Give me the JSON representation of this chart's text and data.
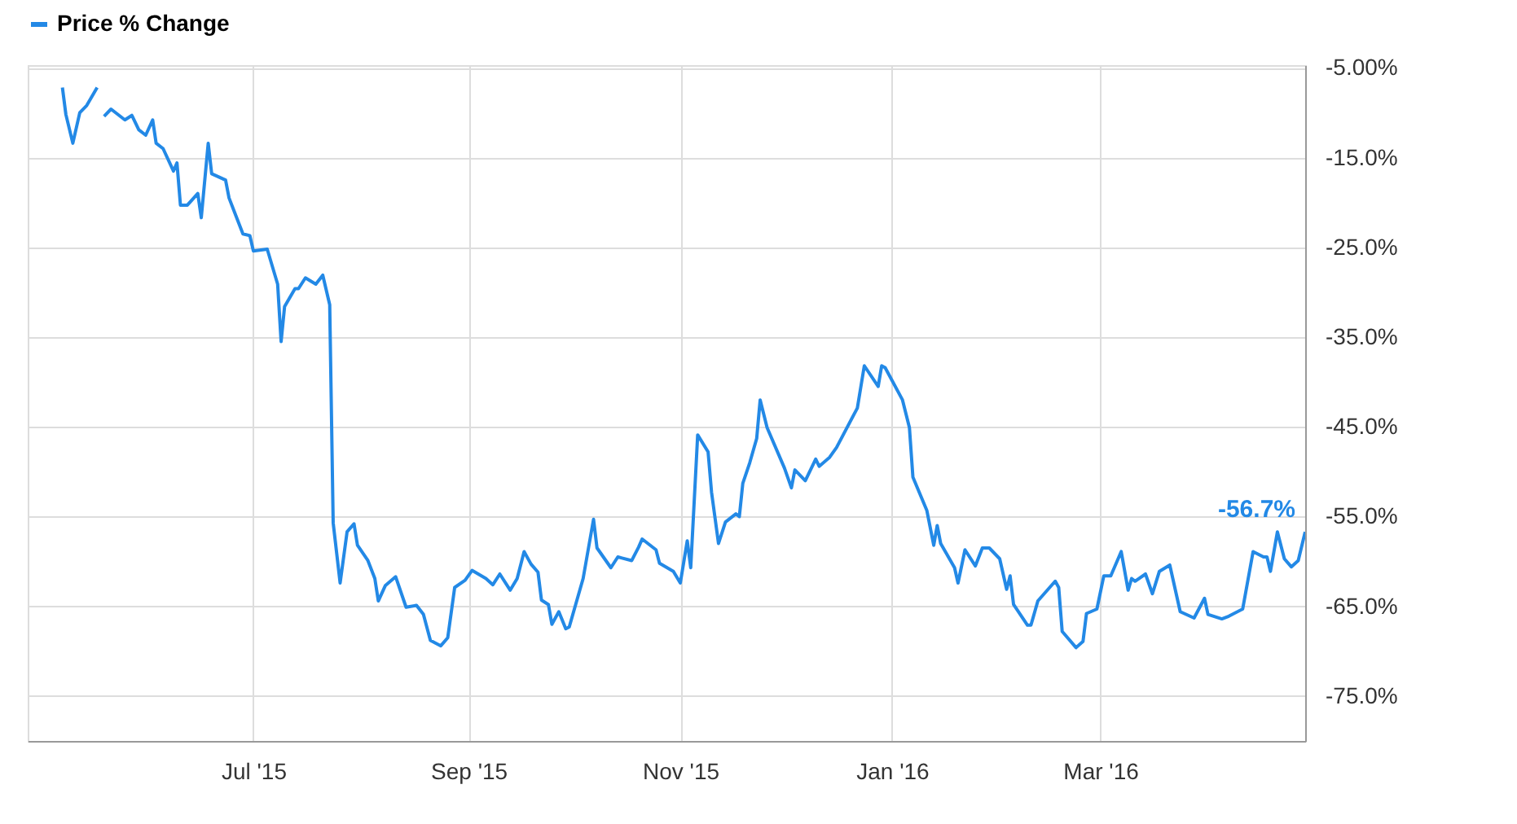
{
  "chart_data": {
    "type": "line",
    "x": [
      "2015-05-07",
      "2015-05-08",
      "2015-05-10",
      "2015-05-12",
      "2015-05-14",
      "2015-05-17",
      "2015-05-18",
      "2015-05-19",
      "2015-05-21",
      "2015-05-25",
      "2015-05-27",
      "2015-05-29",
      "2015-05-31",
      "2015-06-02",
      "2015-06-03",
      "2015-06-05",
      "2015-06-08",
      "2015-06-09",
      "2015-06-10",
      "2015-06-12",
      "2015-06-15",
      "2015-06-16",
      "2015-06-18",
      "2015-06-19",
      "2015-06-23",
      "2015-06-24",
      "2015-06-26",
      "2015-06-28",
      "2015-06-30",
      "2015-07-01",
      "2015-07-05",
      "2015-07-08",
      "2015-07-09",
      "2015-07-10",
      "2015-07-13",
      "2015-07-14",
      "2015-07-16",
      "2015-07-19",
      "2015-07-21",
      "2015-07-23",
      "2015-07-24",
      "2015-07-26",
      "2015-07-28",
      "2015-07-30",
      "2015-07-31",
      "2015-08-03",
      "2015-08-05",
      "2015-08-06",
      "2015-08-08",
      "2015-08-11",
      "2015-08-14",
      "2015-08-17",
      "2015-08-19",
      "2015-08-21",
      "2015-08-24",
      "2015-08-26",
      "2015-08-28",
      "2015-08-31",
      "2015-09-02",
      "2015-09-06",
      "2015-09-08",
      "2015-09-10",
      "2015-09-13",
      "2015-09-15",
      "2015-09-17",
      "2015-09-19",
      "2015-09-21",
      "2015-09-22",
      "2015-09-24",
      "2015-09-25",
      "2015-09-27",
      "2015-09-29",
      "2015-09-30",
      "2015-10-04",
      "2015-10-07",
      "2015-10-08",
      "2015-10-12",
      "2015-10-14",
      "2015-10-18",
      "2015-10-20",
      "2015-10-21",
      "2015-10-25",
      "2015-10-26",
      "2015-10-30",
      "2015-11-01",
      "2015-11-03",
      "2015-11-04",
      "2015-11-06",
      "2015-11-09",
      "2015-11-10",
      "2015-11-12",
      "2015-11-14",
      "2015-11-17",
      "2015-11-18",
      "2015-11-19",
      "2015-11-21",
      "2015-11-23",
      "2015-11-24",
      "2015-11-26",
      "2015-12-01",
      "2015-12-03",
      "2015-12-04",
      "2015-12-07",
      "2015-12-10",
      "2015-12-11",
      "2015-12-14",
      "2015-12-16",
      "2015-12-22",
      "2015-12-24",
      "2015-12-28",
      "2015-12-29",
      "2015-12-30",
      "2016-01-04",
      "2016-01-06",
      "2016-01-07",
      "2016-01-11",
      "2016-01-13",
      "2016-01-14",
      "2016-01-15",
      "2016-01-19",
      "2016-01-20",
      "2016-01-22",
      "2016-01-25",
      "2016-01-27",
      "2016-01-29",
      "2016-02-01",
      "2016-02-03",
      "2016-02-04",
      "2016-02-05",
      "2016-02-09",
      "2016-02-10",
      "2016-02-12",
      "2016-02-17",
      "2016-02-18",
      "2016-02-19",
      "2016-02-23",
      "2016-02-25",
      "2016-02-26",
      "2016-02-29",
      "2016-03-02",
      "2016-03-04",
      "2016-03-07",
      "2016-03-09",
      "2016-03-10",
      "2016-03-11",
      "2016-03-14",
      "2016-03-16",
      "2016-03-18",
      "2016-03-21",
      "2016-03-24",
      "2016-03-28",
      "2016-03-31",
      "2016-04-01",
      "2016-04-05",
      "2016-04-07",
      "2016-04-11",
      "2016-04-14",
      "2016-04-17",
      "2016-04-18",
      "2016-04-19",
      "2016-04-21",
      "2016-04-23",
      "2016-04-25",
      "2016-04-27",
      "2016-04-29"
    ],
    "series": [
      {
        "name": "Price % Change",
        "color": "#2389e6",
        "values": [
          -7.2,
          -10.2,
          -13.4,
          -10.0,
          -9.2,
          -7.2,
          null,
          -10.4,
          -9.6,
          -10.8,
          -10.3,
          -11.9,
          -12.5,
          -10.8,
          -13.4,
          -14.0,
          -16.5,
          -15.6,
          -20.3,
          -20.3,
          -19.0,
          -21.7,
          -13.4,
          -16.8,
          -17.5,
          -19.5,
          -21.5,
          -23.5,
          -23.7,
          -25.4,
          -25.2,
          -29.1,
          -35.5,
          -31.6,
          -29.6,
          -29.6,
          -28.4,
          -29.1,
          -28.1,
          -31.4,
          -55.7,
          -62.4,
          -56.7,
          -55.8,
          -58.2,
          -59.9,
          -61.9,
          -64.4,
          -62.7,
          -61.7,
          -65.1,
          -64.9,
          -65.9,
          -68.8,
          -69.4,
          -68.5,
          -62.9,
          -62.1,
          -61.0,
          -61.9,
          -62.6,
          -61.4,
          -63.2,
          -61.9,
          -58.9,
          -60.3,
          -61.2,
          -64.3,
          -64.8,
          -67.0,
          -65.6,
          -67.5,
          -67.3,
          -61.9,
          -55.3,
          -58.5,
          -60.7,
          -59.5,
          -59.9,
          -58.4,
          -57.5,
          -58.7,
          -60.2,
          -61.1,
          -62.4,
          -57.7,
          -60.7,
          -45.9,
          -47.8,
          -52.3,
          -58.0,
          -55.6,
          -54.7,
          -55.0,
          -51.3,
          -49.0,
          -46.3,
          -42.0,
          -45.1,
          -49.6,
          -51.8,
          -49.8,
          -51.0,
          -48.6,
          -49.4,
          -48.4,
          -47.3,
          -42.9,
          -38.2,
          -40.5,
          -38.2,
          -38.4,
          -42.0,
          -45.1,
          -50.6,
          -54.3,
          -58.2,
          -56.0,
          -58.0,
          -60.7,
          -62.4,
          -58.7,
          -60.5,
          -58.5,
          -58.5,
          -59.7,
          -63.1,
          -61.6,
          -64.8,
          -67.1,
          -67.1,
          -64.4,
          -62.2,
          -62.9,
          -67.8,
          -69.6,
          -68.9,
          -65.8,
          -65.3,
          -61.6,
          -61.6,
          -58.9,
          -63.2,
          -61.9,
          -62.2,
          -61.4,
          -63.6,
          -61.1,
          -60.4,
          -65.6,
          -66.3,
          -64.1,
          -65.9,
          -66.4,
          -66.1,
          -65.3,
          -58.9,
          -59.5,
          -59.5,
          -61.1,
          -56.7,
          -59.7,
          -60.6,
          -59.9,
          -56.7
        ]
      }
    ],
    "xlim": [
      "2015-04-27",
      "2016-04-29"
    ],
    "xticks": [
      {
        "value": "2015-07-01",
        "label": "Jul '15"
      },
      {
        "value": "2015-09-01",
        "label": "Sep '15"
      },
      {
        "value": "2015-11-01",
        "label": "Nov '15"
      },
      {
        "value": "2016-01-01",
        "label": "Jan '16"
      },
      {
        "value": "2016-03-01",
        "label": "Mar '16"
      }
    ],
    "ylim": [
      -80,
      -4.7
    ],
    "yticks": [
      {
        "value": -5,
        "label": "-5.00%"
      },
      {
        "value": -15,
        "label": "-15.0%"
      },
      {
        "value": -25,
        "label": "-25.0%"
      },
      {
        "value": -35,
        "label": "-35.0%"
      },
      {
        "value": -45,
        "label": "-45.0%"
      },
      {
        "value": -55,
        "label": "-55.0%"
      },
      {
        "value": -65,
        "label": "-65.0%"
      },
      {
        "value": -75,
        "label": "-75.0%"
      }
    ],
    "annotations": [
      {
        "text": "-56.7%",
        "x": "2016-04-29",
        "y": -56.7
      }
    ],
    "grid": true,
    "legend": "top left",
    "marker": "none",
    "line_style": "solid"
  }
}
